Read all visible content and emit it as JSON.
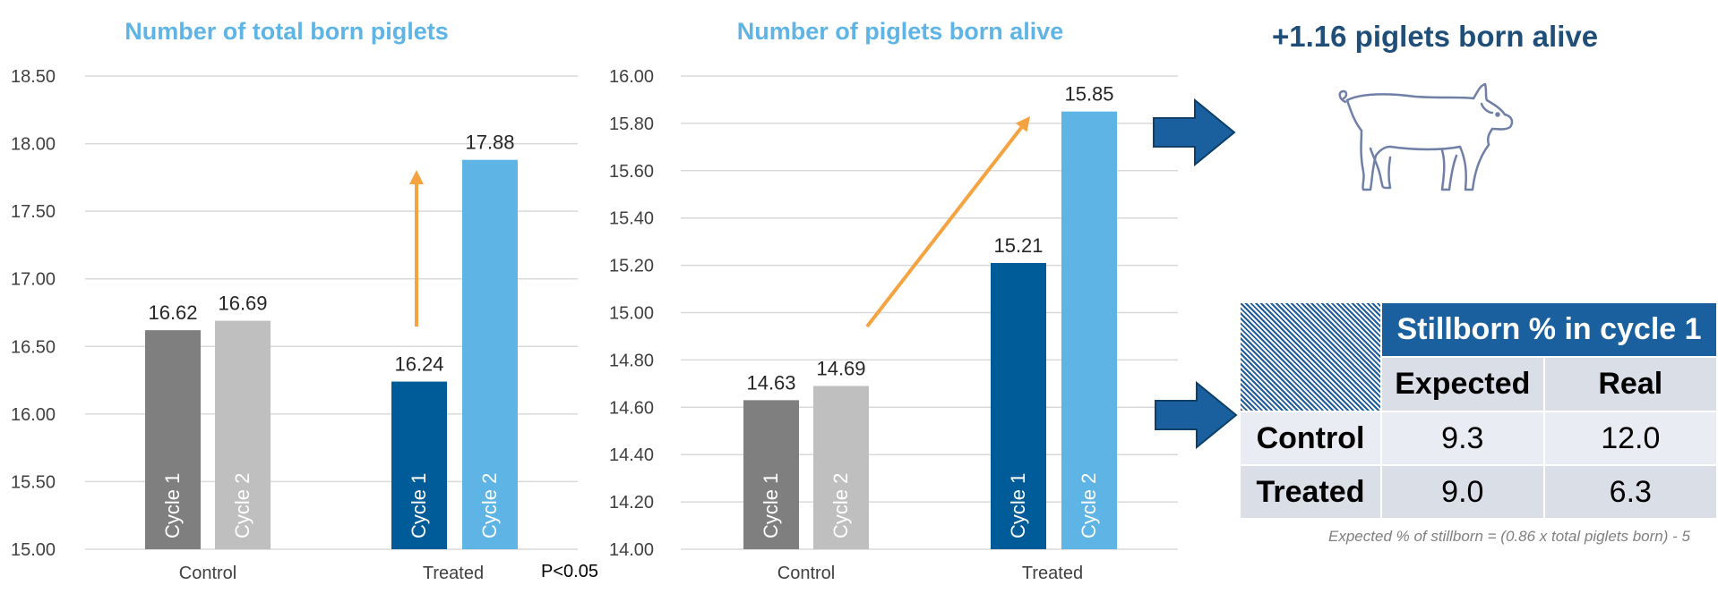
{
  "charts": {
    "left_title": "Number of total born piglets",
    "right_title": "Number of piglets born alive",
    "p_value": "P<0.05"
  },
  "chart_data": [
    {
      "type": "bar",
      "title": "Number of total born piglets",
      "categories": [
        "Control",
        "Treated"
      ],
      "series": [
        {
          "name": "Cycle 1",
          "values": [
            16.62,
            16.24
          ]
        },
        {
          "name": "Cycle 2",
          "values": [
            16.69,
            17.88
          ]
        }
      ],
      "data_labels": [
        [
          "16.62",
          "16.69"
        ],
        [
          "16.24",
          "17.88"
        ]
      ],
      "ylim": [
        15.0,
        18.5
      ],
      "yticks": [
        "15.00",
        "15.50",
        "16.00",
        "16.50",
        "17.00",
        "17.50",
        "18.00",
        "18.50"
      ],
      "grid": true,
      "annotation": "P<0.05"
    },
    {
      "type": "bar",
      "title": "Number of piglets born alive",
      "categories": [
        "Control",
        "Treated"
      ],
      "series": [
        {
          "name": "Cycle 1",
          "values": [
            14.63,
            15.21
          ]
        },
        {
          "name": "Cycle 2",
          "values": [
            14.69,
            15.85
          ]
        }
      ],
      "data_labels": [
        [
          "14.63",
          "14.69"
        ],
        [
          "15.21",
          "15.85"
        ]
      ],
      "ylim": [
        14.0,
        16.0
      ],
      "yticks": [
        "14.00",
        "14.20",
        "14.40",
        "14.60",
        "14.80",
        "15.00",
        "15.20",
        "15.40",
        "15.60",
        "15.80",
        "16.00"
      ],
      "grid": true
    }
  ],
  "colors": {
    "control_cycle1": "#7F7F7F",
    "control_cycle2": "#BFBFBF",
    "treated_cycle1": "#005C99",
    "treated_cycle2": "#5DB4E5",
    "arrow_orange": "#F4A340",
    "big_arrow": "#1A5F9E",
    "title_blue": "#5DB4E5",
    "headline_blue": "#1F4E79"
  },
  "headline": "+1.16 piglets born alive",
  "icons": [
    "pig-icon",
    "right-arrow-icon"
  ],
  "table": {
    "title": "Stillborn % in cycle 1",
    "col_headers": [
      "Expected",
      "Real"
    ],
    "rows": [
      {
        "label": "Control",
        "expected": "9.3",
        "real": "12.0"
      },
      {
        "label": "Treated",
        "expected": "9.0",
        "real": "6.3"
      }
    ],
    "footnote": "Expected % of stillborn = (0.86 x total piglets born) - 5"
  }
}
